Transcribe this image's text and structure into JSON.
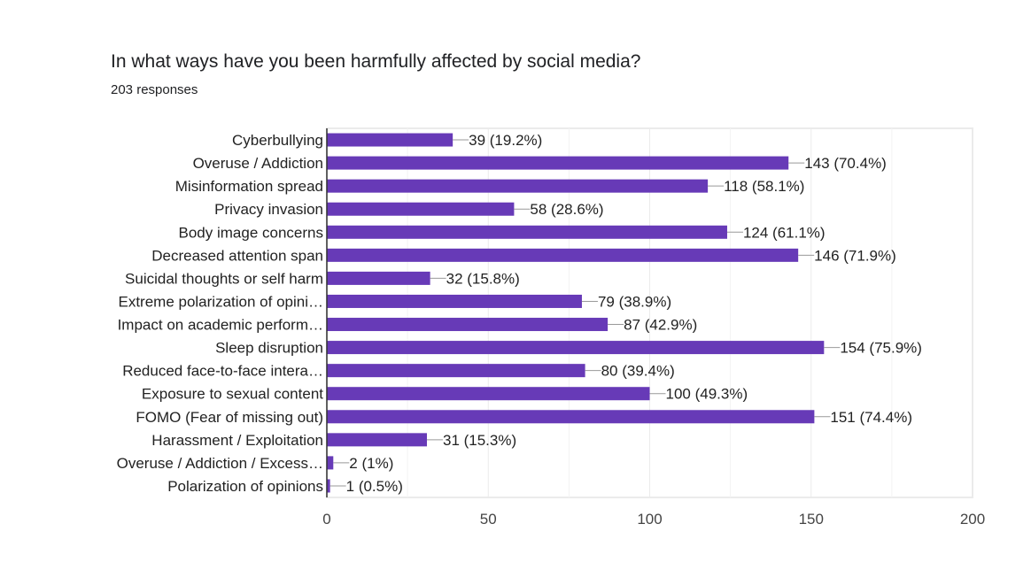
{
  "header": {
    "title": "In what ways have you been harmfully affected by social media?",
    "responses": "203 responses"
  },
  "colors": {
    "bar": "#673ab7",
    "gridline": "#ebebeb",
    "axis": "#333333",
    "leader": "#999999"
  },
  "chart_data": {
    "type": "bar",
    "orientation": "horizontal",
    "title": "In what ways have you been harmfully affected by social media?",
    "subtitle": "203 responses",
    "xlabel": "",
    "ylabel": "",
    "xlim": [
      0,
      200
    ],
    "major_ticks": [
      0,
      50,
      100,
      150,
      200
    ],
    "minor_gridlines": [
      25,
      75,
      125,
      175
    ],
    "grid": true,
    "legend": "none",
    "categories": [
      "Cyberbullying",
      "Overuse / Addiction",
      "Misinformation spread",
      "Privacy invasion",
      "Body image concerns",
      "Decreased attention span",
      "Suicidal thoughts or self harm",
      "Extreme polarization of opini…",
      "Impact on academic perform…",
      "Sleep disruption",
      "Reduced face-to-face intera…",
      "Exposure to sexual content",
      "FOMO (Fear of missing out)",
      "Harassment / Exploitation",
      "Overuse / Addiction / Excess…",
      "Polarization of opinions"
    ],
    "values": [
      39,
      143,
      118,
      58,
      124,
      146,
      32,
      79,
      87,
      154,
      80,
      100,
      151,
      31,
      2,
      1
    ],
    "data_labels": [
      "39 (19.2%)",
      "143 (70.4%)",
      "118 (58.1%)",
      "58 (28.6%)",
      "124 (61.1%)",
      "146 (71.9%)",
      "32 (15.8%)",
      "79 (38.9%)",
      "87 (42.9%)",
      "154 (75.9%)",
      "80 (39.4%)",
      "100 (49.3%)",
      "151 (74.4%)",
      "31 (15.3%)",
      "2 (1%)",
      "1 (0.5%)"
    ]
  }
}
